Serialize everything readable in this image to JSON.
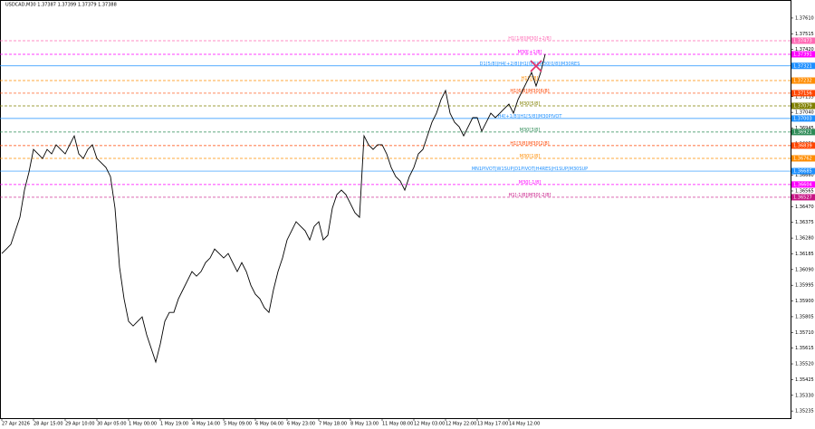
{
  "chart_data": {
    "type": "line",
    "title": "USDCAD,M30  1.37387 1.37399 1.37379 1.37388",
    "color": "#000000",
    "grid": false,
    "ylim": [
      1.35192,
      1.37719
    ],
    "yticks": [
      1.35235,
      {
        "value": 1.3533,
        "label": "1.35330"
      },
      1.35425,
      {
        "value": 1.3552,
        "label": "1.35520"
      },
      1.35615,
      {
        "value": 1.3571,
        "label": "1.35710"
      },
      1.35805,
      {
        "value": 1.359,
        "label": "1.35900"
      },
      1.35995,
      {
        "value": 1.3609,
        "label": "1.36090"
      },
      1.36185,
      {
        "value": 1.3628,
        "label": "1.36280"
      },
      1.36375,
      {
        "value": 1.3647,
        "label": "1.36470"
      },
      1.36565,
      {
        "value": 1.3666,
        "label": "1.36660"
      },
      1.36755,
      {
        "value": 1.3685,
        "label": "1.36850"
      },
      1.36945,
      {
        "value": 1.3704,
        "label": "1.37040"
      },
      1.37135,
      {
        "value": 1.3723,
        "label": "1.37230"
      },
      1.37325,
      {
        "value": 1.3742,
        "label": "1.37420"
      },
      1.37515,
      {
        "value": 1.3761,
        "label": "1.37610"
      }
    ],
    "categories": [
      "27 Apr 2026",
      null,
      null,
      null,
      null,
      null,
      null,
      "28 Apr 15:00",
      null,
      null,
      null,
      null,
      null,
      null,
      "29 Apr 10:00",
      null,
      null,
      null,
      null,
      null,
      null,
      "30 Apr 05:00",
      null,
      null,
      null,
      null,
      null,
      null,
      "1 May 00:00",
      null,
      null,
      null,
      null,
      null,
      null,
      "1 May 19:00",
      null,
      null,
      null,
      null,
      null,
      null,
      "4 May 14:00",
      null,
      null,
      null,
      null,
      null,
      null,
      "5 May 09:00",
      null,
      null,
      null,
      null,
      null,
      null,
      "6 May 04:00",
      null,
      null,
      null,
      null,
      null,
      null,
      "6 May 23:00",
      null,
      null,
      null,
      null,
      null,
      null,
      "7 May 18:00",
      null,
      null,
      null,
      null,
      null,
      null,
      "8 May 13:00",
      null,
      null,
      null,
      null,
      null,
      null,
      "11 May 08:00",
      null,
      null,
      null,
      null,
      null,
      null,
      "12 May 03:00",
      null,
      null,
      null,
      null,
      null,
      null,
      "12 May 22:00",
      null,
      null,
      null,
      null,
      null,
      null,
      "13 May 17:00",
      null,
      null,
      null,
      null,
      null,
      null,
      "14 May 12:00",
      null,
      null,
      null,
      null,
      null,
      null,
      null,
      null
    ],
    "values": [
      1.36187,
      1.36214,
      1.36242,
      1.36324,
      1.36406,
      1.3657,
      1.36679,
      1.36816,
      1.36789,
      1.36761,
      1.36816,
      1.36789,
      1.36844,
      1.36816,
      1.36789,
      1.36844,
      1.36898,
      1.36789,
      1.36761,
      1.36816,
      1.36844,
      1.36761,
      1.36734,
      1.36707,
      1.36652,
      1.36461,
      1.36105,
      1.35913,
      1.35777,
      1.35749,
      1.35777,
      1.35804,
      1.35695,
      1.35613,
      1.35531,
      1.3564,
      1.35777,
      1.35831,
      1.35831,
      1.35913,
      1.35968,
      1.36023,
      1.36078,
      1.3605,
      1.36078,
      1.36132,
      1.3616,
      1.36214,
      1.36187,
      1.3616,
      1.36187,
      1.36132,
      1.36078,
      1.36132,
      1.36078,
      1.35995,
      1.35941,
      1.35913,
      1.35859,
      1.35831,
      1.35968,
      1.36078,
      1.3616,
      1.36269,
      1.36324,
      1.36379,
      1.36351,
      1.36324,
      1.36269,
      1.36351,
      1.36379,
      1.36269,
      1.36297,
      1.36461,
      1.36543,
      1.3657,
      1.36543,
      1.36488,
      1.36433,
      1.36406,
      1.36898,
      1.36844,
      1.36816,
      1.36844,
      1.36844,
      1.36789,
      1.36707,
      1.36652,
      1.36625,
      1.3657,
      1.36652,
      1.36707,
      1.36789,
      1.36816,
      1.36898,
      1.3698,
      1.37035,
      1.37117,
      1.37172,
      1.37035,
      1.3698,
      1.36953,
      1.36898,
      1.36953,
      1.37008,
      1.37008,
      1.36926,
      1.3698,
      1.37035,
      1.37008,
      1.37035,
      1.37063,
      1.3709,
      1.37035,
      1.37117,
      1.37172,
      1.37227,
      1.37281,
      1.37199,
      1.37281,
      1.37391
    ],
    "levels": [
      {
        "label": "H1[1/8]|M30[+2/8]",
        "value": 1.37473,
        "color": "#ff69b4",
        "style": "dashed"
      },
      {
        "label": "M30[+1/8]",
        "value": 1.37391,
        "color": "#ff00ff",
        "style": "dashed"
      },
      {
        "label": "D1[5/8]|H4[+2/8]|H1[0/8]|M30[0/8]|M30RES",
        "value": 1.37321,
        "color": "#1e90ff",
        "style": "solid"
      },
      {
        "label": "H1[7/8]",
        "value": 1.37232,
        "color": "#ff8c00",
        "style": "dashed"
      },
      {
        "label": "H1[6/8]|M30[6/8]",
        "value": 1.37156,
        "color": "#ff4500",
        "style": "dashed"
      },
      {
        "label": "M30[5/8]",
        "value": 1.37079,
        "color": "#808000",
        "style": "dashed"
      },
      {
        "label": "H4[+1/8]|H1[5/8]|M30PIVOT",
        "value": 1.37003,
        "color": "#1e90ff",
        "style": "solid"
      },
      {
        "label": "M30[3/8]",
        "value": 1.36921,
        "color": "#2e8b57",
        "style": "dashed"
      },
      {
        "label": "H1[3/8]|M30[2/8]",
        "value": 1.36839,
        "color": "#ff4500",
        "style": "dashed"
      },
      {
        "label": "M30[1/8]",
        "value": 1.36762,
        "color": "#ff8c00",
        "style": "dashed"
      },
      {
        "label": "MN1PIVOT|W1SUP|D1PIVOT|H4RES|H1SUP|M30SUP",
        "value": 1.36685,
        "color": "#1e90ff",
        "style": "solid"
      },
      {
        "label": "M30[-1/8]",
        "value": 1.36604,
        "color": "#ff00ff",
        "style": "dashed"
      },
      {
        "label": "H1[-1/8]|M30[-2/8]",
        "value": 1.36527,
        "color": "#c71585",
        "style": "dashed"
      }
    ]
  }
}
